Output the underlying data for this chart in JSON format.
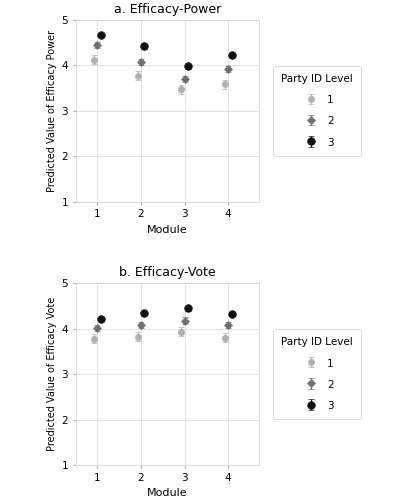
{
  "panel_a": {
    "title": "a. Efficacy-Power",
    "ylabel": "Predicted Value of Efficacy Power",
    "modules": [
      1,
      2,
      3,
      4
    ],
    "level1": {
      "y": [
        4.12,
        3.77,
        3.47,
        3.58
      ],
      "yerr": [
        0.1,
        0.1,
        0.1,
        0.1
      ]
    },
    "level2": {
      "y": [
        4.45,
        4.07,
        3.7,
        3.92
      ],
      "yerr": [
        0.07,
        0.07,
        0.07,
        0.07
      ]
    },
    "level3": {
      "y": [
        4.67,
        4.42,
        3.98,
        4.22
      ],
      "yerr": [
        0.05,
        0.06,
        0.05,
        0.06
      ]
    }
  },
  "panel_b": {
    "title": "b. Efficacy-Vote",
    "ylabel": "Predicted Value of Efficacy Vote",
    "modules": [
      1,
      2,
      3,
      4
    ],
    "level1": {
      "y": [
        3.78,
        3.82,
        3.93,
        3.8
      ],
      "yerr": [
        0.1,
        0.1,
        0.1,
        0.1
      ]
    },
    "level2": {
      "y": [
        4.02,
        4.08,
        4.18,
        4.08
      ],
      "yerr": [
        0.07,
        0.07,
        0.07,
        0.07
      ]
    },
    "level3": {
      "y": [
        4.22,
        4.35,
        4.45,
        4.33
      ],
      "yerr": [
        0.05,
        0.05,
        0.05,
        0.05
      ]
    }
  },
  "colors": {
    "level1": "#b0b0b0",
    "level2": "#707070",
    "level3": "#111111"
  },
  "offsets": [
    -0.08,
    0.0,
    0.08
  ],
  "ylim": [
    1,
    5
  ],
  "yticks": [
    1,
    2,
    3,
    4,
    5
  ],
  "xticks": [
    1,
    2,
    3,
    4
  ],
  "xlabel": "Module",
  "legend_title": "Party ID Level",
  "legend_labels": [
    "1",
    "2",
    "3"
  ],
  "bg_color": "#ffffff",
  "grid_color": "#dddddd",
  "marker_size": 5,
  "capsize": 2,
  "linewidth": 0.8
}
